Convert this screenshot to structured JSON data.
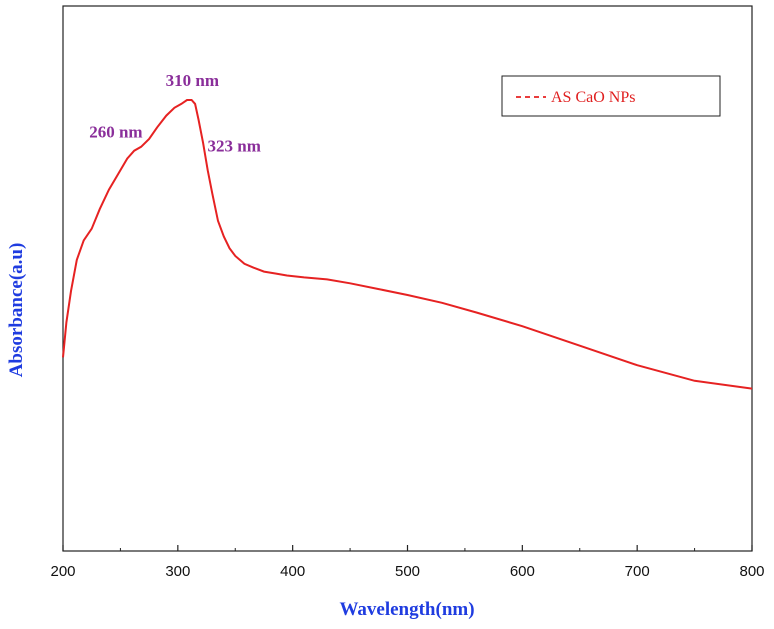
{
  "chart_data": {
    "type": "line",
    "xlabel": "Wavelength(nm)",
    "ylabel": "Absorbance(a.u)",
    "xlim": [
      200,
      800
    ],
    "ylim": [
      0,
      1
    ],
    "x_ticks": [
      "200",
      "300",
      "400",
      "500",
      "600",
      "700",
      "800"
    ],
    "y_ticks_shown": false,
    "grid": false,
    "legend_position": "top-right",
    "colors": {
      "line": "#e62222",
      "axis_title": "#1f3ce0",
      "annotation": "#8a2e9a"
    },
    "series": [
      {
        "name": "AS CaO NPs",
        "line_style": "dashed-legend / solid-curve",
        "x": [
          200,
          203,
          207,
          212,
          218,
          225,
          232,
          240,
          248,
          256,
          262,
          268,
          275,
          282,
          290,
          297,
          303,
          308,
          312,
          315,
          318,
          322,
          326,
          330,
          335,
          340,
          345,
          350,
          358,
          366,
          375,
          385,
          395,
          410,
          430,
          450,
          475,
          500,
          530,
          560,
          600,
          650,
          700,
          750,
          800
        ],
        "values": [
          0.34,
          0.43,
          0.51,
          0.59,
          0.64,
          0.67,
          0.72,
          0.77,
          0.81,
          0.85,
          0.87,
          0.88,
          0.9,
          0.93,
          0.96,
          0.98,
          0.99,
          1.0,
          1.0,
          0.99,
          0.95,
          0.89,
          0.82,
          0.76,
          0.69,
          0.65,
          0.62,
          0.6,
          0.58,
          0.57,
          0.56,
          0.555,
          0.55,
          0.545,
          0.54,
          0.53,
          0.515,
          0.5,
          0.48,
          0.455,
          0.42,
          0.37,
          0.32,
          0.28,
          0.26
        ]
      }
    ],
    "annotations": [
      {
        "text": "310 nm",
        "x": 310,
        "y": 1.0
      },
      {
        "text": "260 nm",
        "x": 260,
        "y": 0.86
      },
      {
        "text": "323 nm",
        "x": 323,
        "y": 0.87
      }
    ]
  }
}
